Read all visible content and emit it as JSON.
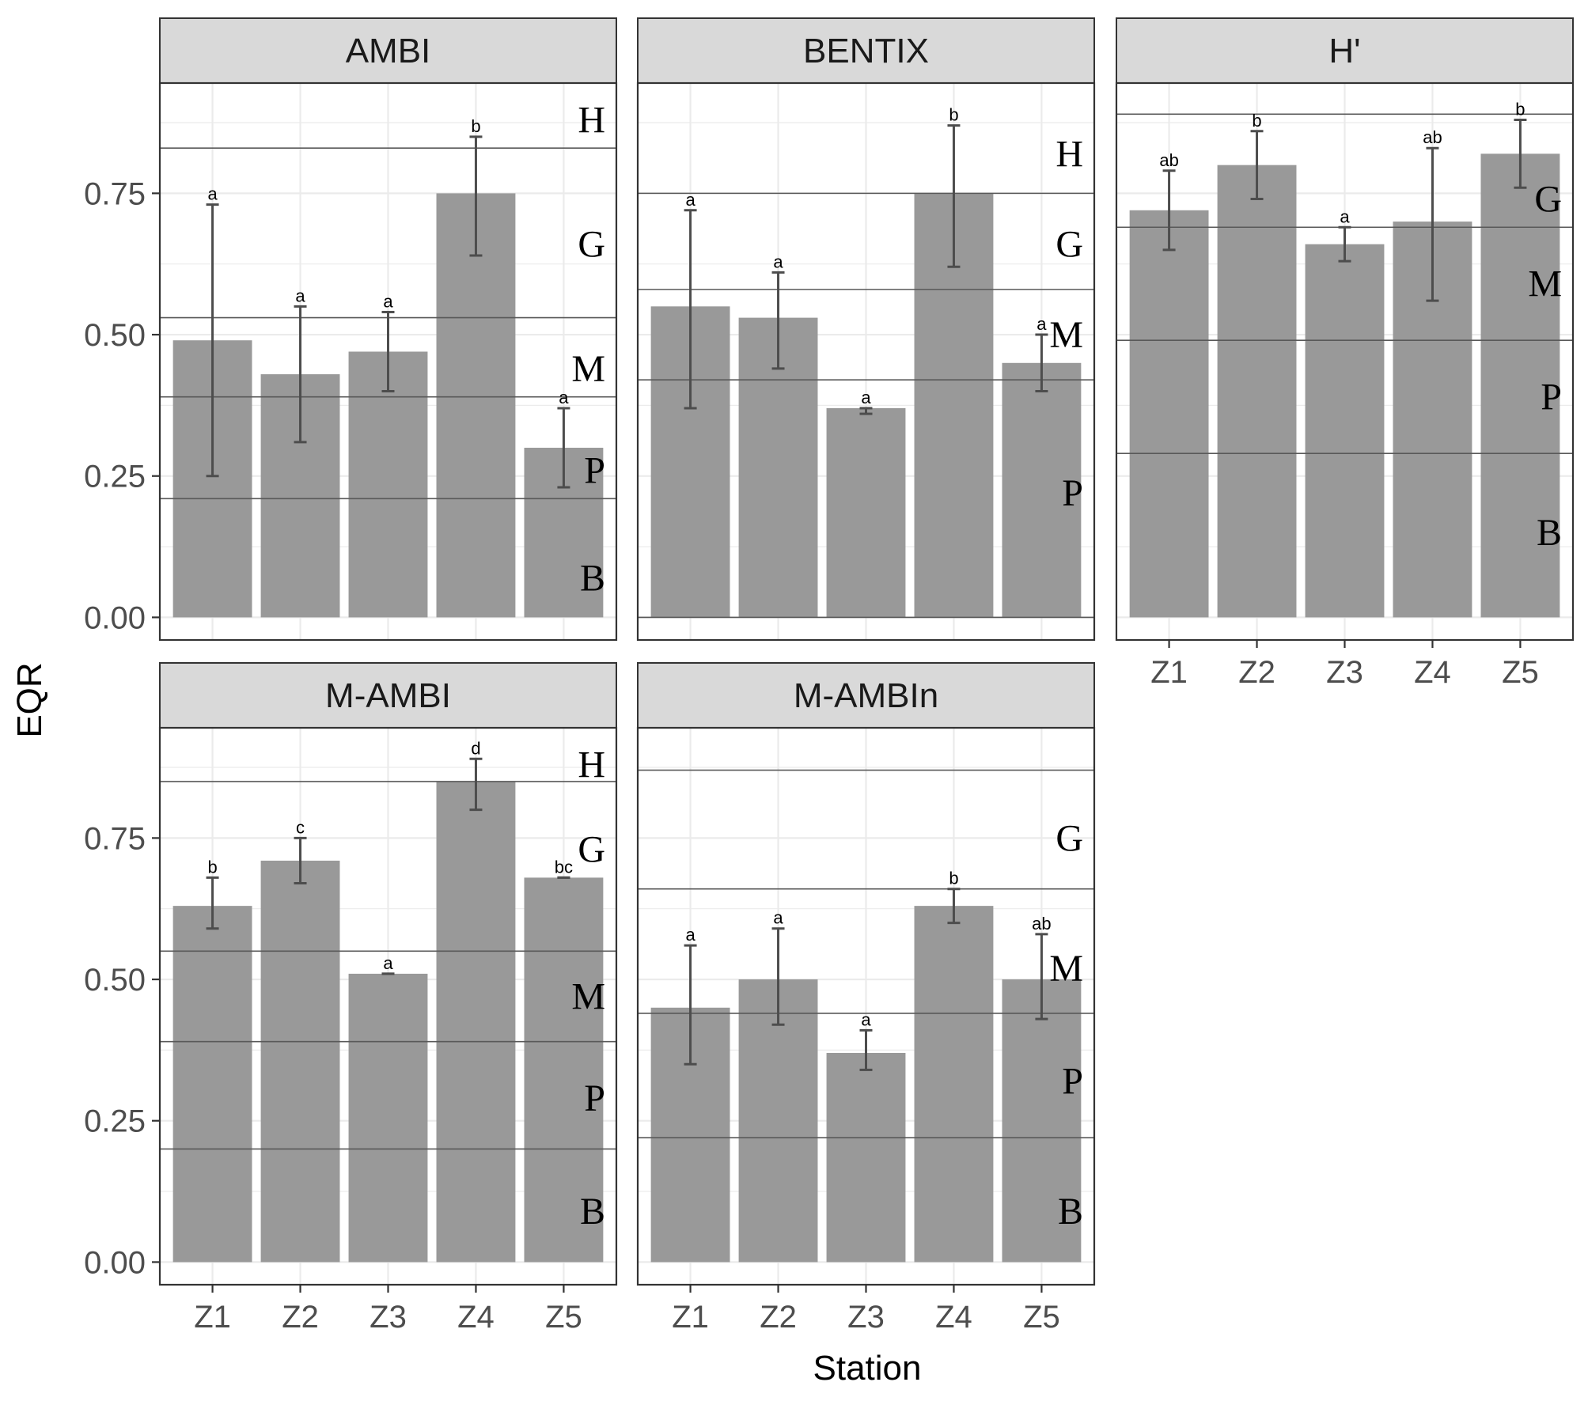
{
  "chart_data": {
    "type": "bar",
    "facet": true,
    "xlabel": "Station",
    "ylabel": "EQR",
    "categories": [
      "Z1",
      "Z2",
      "Z3",
      "Z4",
      "Z5"
    ],
    "yticks": [
      "0.00",
      "0.25",
      "0.50",
      "0.75"
    ],
    "ylim": [
      -0.04,
      0.945
    ],
    "grid": true,
    "colors": {
      "bar": "#999999",
      "error_bar": "#4d4d4d",
      "strip": "#d9d9d9",
      "grid": "#ebebeb",
      "threshold": "#595959"
    },
    "panels": [
      {
        "title": "AMBI",
        "values": [
          0.49,
          0.43,
          0.47,
          0.75,
          0.3
        ],
        "err_low": [
          0.25,
          0.31,
          0.4,
          0.64,
          0.23
        ],
        "err_high": [
          0.73,
          0.55,
          0.54,
          0.85,
          0.37
        ],
        "sig": [
          "a",
          "a",
          "a",
          "b",
          "a"
        ],
        "thresholds": [
          0.83,
          0.53,
          0.39,
          0.21
        ],
        "classes": [
          {
            "label": "H",
            "y": 0.88
          },
          {
            "label": "G",
            "y": 0.66
          },
          {
            "label": "M",
            "y": 0.44
          },
          {
            "label": "P",
            "y": 0.26
          },
          {
            "label": "B",
            "y": 0.07
          }
        ]
      },
      {
        "title": "BENTIX",
        "values": [
          0.55,
          0.53,
          0.37,
          0.75,
          0.45
        ],
        "err_low": [
          0.37,
          0.44,
          0.36,
          0.62,
          0.4
        ],
        "err_high": [
          0.72,
          0.61,
          0.37,
          0.87,
          0.5
        ],
        "sig": [
          "a",
          "a",
          "a",
          "b",
          "a"
        ],
        "thresholds": [
          0.75,
          0.58,
          0.42,
          0.0
        ],
        "classes": [
          {
            "label": "H",
            "y": 0.82
          },
          {
            "label": "G",
            "y": 0.66
          },
          {
            "label": "M",
            "y": 0.5
          },
          {
            "label": "P",
            "y": 0.22
          }
        ]
      },
      {
        "title": "H'",
        "values": [
          0.72,
          0.8,
          0.66,
          0.7,
          0.82
        ],
        "err_low": [
          0.65,
          0.74,
          0.63,
          0.56,
          0.76
        ],
        "err_high": [
          0.79,
          0.86,
          0.69,
          0.83,
          0.88
        ],
        "sig": [
          "ab",
          "b",
          "a",
          "ab",
          "b"
        ],
        "thresholds": [
          0.89,
          0.69,
          0.49,
          0.29
        ],
        "classes": [
          {
            "label": "G",
            "y": 0.74
          },
          {
            "label": "M",
            "y": 0.59
          },
          {
            "label": "P",
            "y": 0.39
          },
          {
            "label": "B",
            "y": 0.15
          }
        ]
      },
      {
        "title": "M-AMBI",
        "values": [
          0.63,
          0.71,
          0.51,
          0.85,
          0.68
        ],
        "err_low": [
          0.59,
          0.67,
          0.51,
          0.8,
          0.68
        ],
        "err_high": [
          0.68,
          0.75,
          0.51,
          0.89,
          0.68
        ],
        "sig": [
          "b",
          "c",
          "a",
          "d",
          "bc"
        ],
        "thresholds": [
          0.85,
          0.55,
          0.39,
          0.2
        ],
        "classes": [
          {
            "label": "H",
            "y": 0.88
          },
          {
            "label": "G",
            "y": 0.73
          },
          {
            "label": "M",
            "y": 0.47
          },
          {
            "label": "P",
            "y": 0.29
          },
          {
            "label": "B",
            "y": 0.09
          }
        ]
      },
      {
        "title": "M-AMBIn",
        "values": [
          0.45,
          0.5,
          0.37,
          0.63,
          0.5
        ],
        "err_low": [
          0.35,
          0.42,
          0.34,
          0.6,
          0.43
        ],
        "err_high": [
          0.56,
          0.59,
          0.41,
          0.66,
          0.58
        ],
        "sig": [
          "a",
          "a",
          "a",
          "b",
          "ab"
        ],
        "thresholds": [
          0.87,
          0.66,
          0.44,
          0.22
        ],
        "classes": [
          {
            "label": "G",
            "y": 0.75
          },
          {
            "label": "M",
            "y": 0.52
          },
          {
            "label": "P",
            "y": 0.32
          },
          {
            "label": "B",
            "y": 0.09
          }
        ]
      }
    ]
  }
}
